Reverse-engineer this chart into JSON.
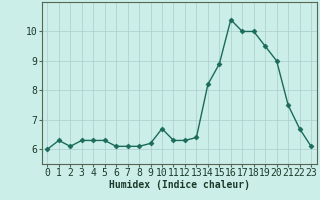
{
  "x": [
    0,
    1,
    2,
    3,
    4,
    5,
    6,
    7,
    8,
    9,
    10,
    11,
    12,
    13,
    14,
    15,
    16,
    17,
    18,
    19,
    20,
    21,
    22,
    23
  ],
  "y": [
    6.0,
    6.3,
    6.1,
    6.3,
    6.3,
    6.3,
    6.1,
    6.1,
    6.1,
    6.2,
    6.7,
    6.3,
    6.3,
    6.4,
    8.2,
    8.9,
    10.4,
    10.0,
    10.0,
    9.5,
    9.0,
    7.5,
    6.7,
    6.1
  ],
  "line_color": "#1a6b5a",
  "marker": "D",
  "marker_size": 2.5,
  "bg_color": "#cceee8",
  "grid_color": "#aacccc",
  "xlabel": "Humidex (Indice chaleur)",
  "xlim": [
    -0.5,
    23.5
  ],
  "ylim": [
    5.5,
    11.0
  ],
  "yticks": [
    6,
    7,
    8,
    9,
    10
  ],
  "xticks": [
    0,
    1,
    2,
    3,
    4,
    5,
    6,
    7,
    8,
    9,
    10,
    11,
    12,
    13,
    14,
    15,
    16,
    17,
    18,
    19,
    20,
    21,
    22,
    23
  ],
  "xlabel_fontsize": 7,
  "tick_fontsize": 7,
  "line_width": 1.0
}
